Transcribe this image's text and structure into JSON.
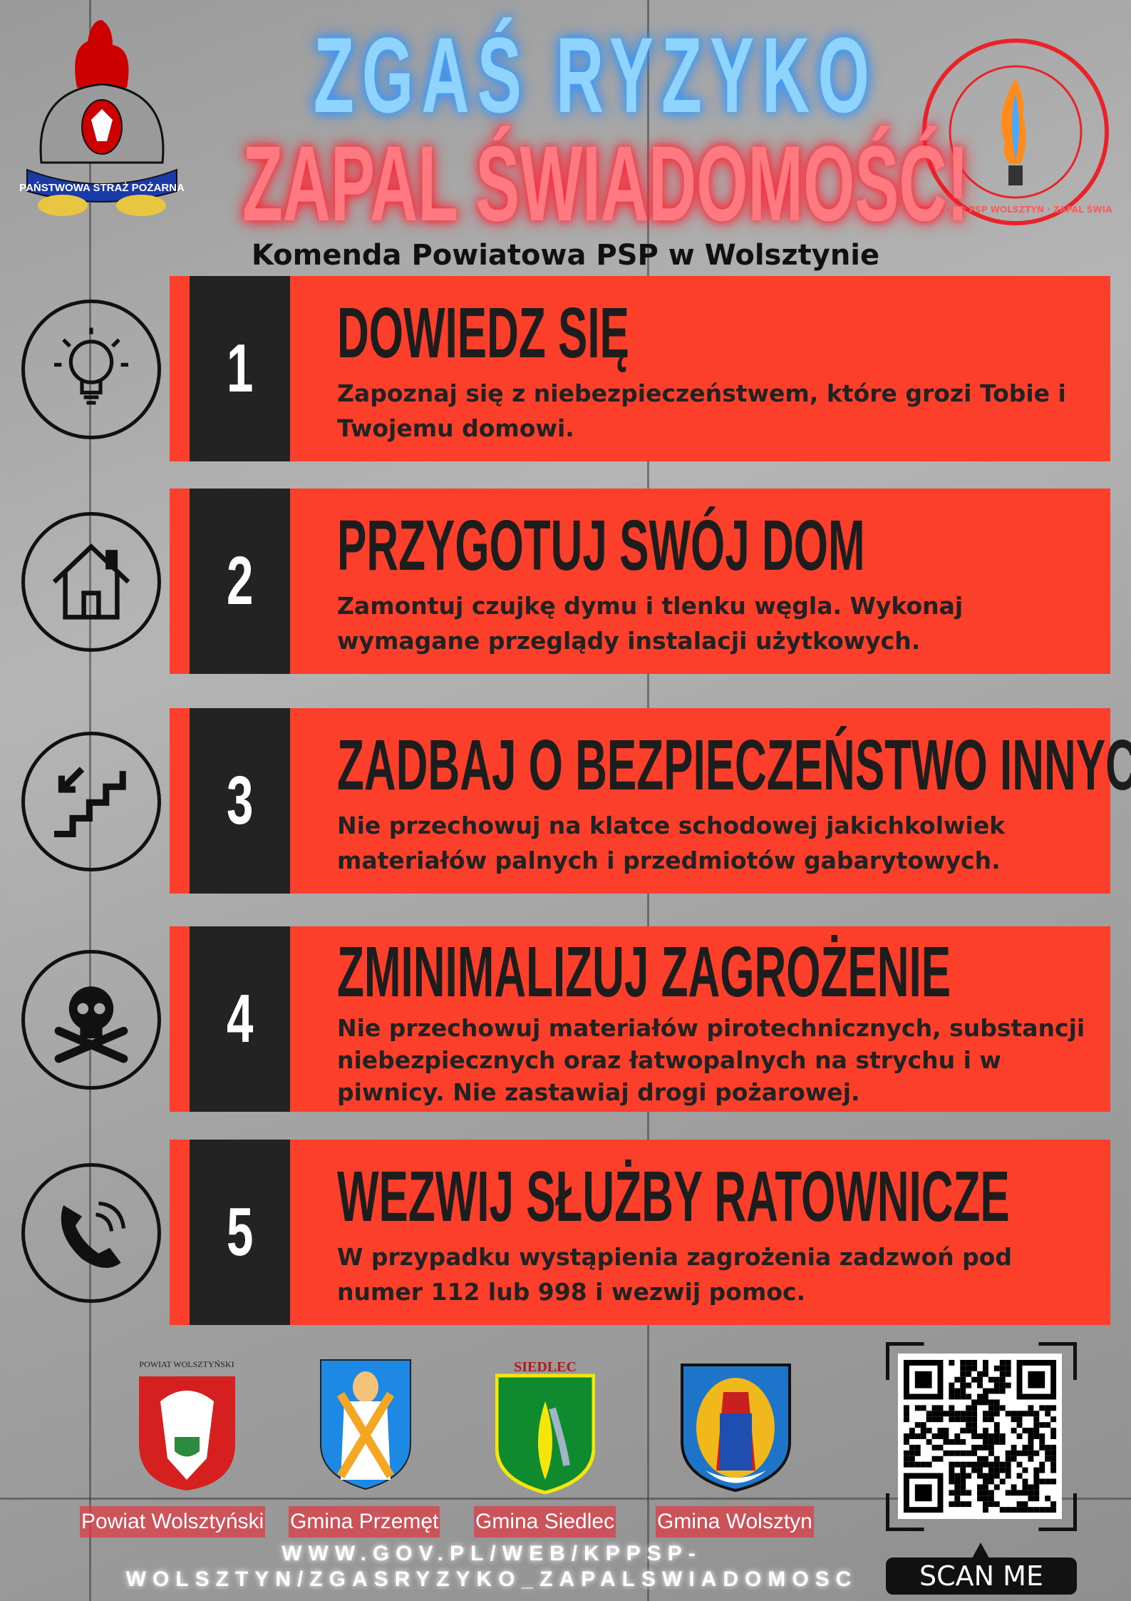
{
  "header": {
    "title_line1": "ZGAŚ RYZYKO",
    "title_line2": "ZAPAL ŚWIADOMOŚĆ!",
    "subtitle": "Komenda Powiatowa PSP w Wolsztynie",
    "psp_logo_text": "PAŃSTWOWA STRAŻ POŻARNA",
    "campaign_logo_text": "ZGAŚ RYZYKO · KP PSP WOLSZTYN · ZAPAL ŚWIADOMOŚĆ"
  },
  "colors": {
    "panel": "#fc3f2b",
    "number_block": "#232323",
    "title_blue": "#8fd3ff",
    "title_red": "#ff7a80"
  },
  "steps": [
    {
      "number": "1",
      "icon": "lightbulb-brain-icon",
      "heading": "DOWIEDZ SIĘ",
      "text": "Zapoznaj się z niebezpieczeństwem, które grozi Tobie i Twojemu domowi."
    },
    {
      "number": "2",
      "icon": "house-icon",
      "heading": "PRZYGOTUJ SWÓJ DOM",
      "text": "Zamontuj czujkę dymu i tlenku węgla. Wykonaj wymagane przeglądy instalacji użytkowych."
    },
    {
      "number": "3",
      "icon": "stairs-icon",
      "heading": "ZADBAJ O BEZPIECZEŃSTWO INNYCH",
      "text": "Nie przechowuj na klatce schodowej jakichkolwiek materiałów palnych i przedmiotów gabarytowych."
    },
    {
      "number": "4",
      "icon": "skull-crossbones-icon",
      "heading": "ZMINIMALIZUJ ZAGROŻENIE",
      "text": "Nie przechowuj materiałów pirotechnicznych, substancji niebezpiecznych oraz łatwopalnych na strychu i w piwnicy. Nie zastawiaj drogi pożarowej."
    },
    {
      "number": "5",
      "icon": "phone-icon",
      "heading": "WEZWIJ SŁUŻBY RATOWNICZE",
      "text": "W przypadku wystąpienia zagrożenia zadzwoń pod numer 112 lub 998 i wezwij pomoc."
    }
  ],
  "footer": {
    "partners": [
      {
        "label": "Powiat Wolsztyński",
        "crest_caption": "POWIAT WOLSZTYŃSKI"
      },
      {
        "label": "Gmina Przemęt"
      },
      {
        "label": "Gmina Siedlec",
        "crest_caption": "SIEDLEC"
      },
      {
        "label": "Gmina Wolsztyn"
      }
    ],
    "url_line1": "WWW.GOV.PL/WEB/KPPSP-",
    "url_line2": "WOLSZTYN/ZGASRYZYKO_ZAPALSWIADOMOSC",
    "scan_label": "SCAN ME"
  }
}
